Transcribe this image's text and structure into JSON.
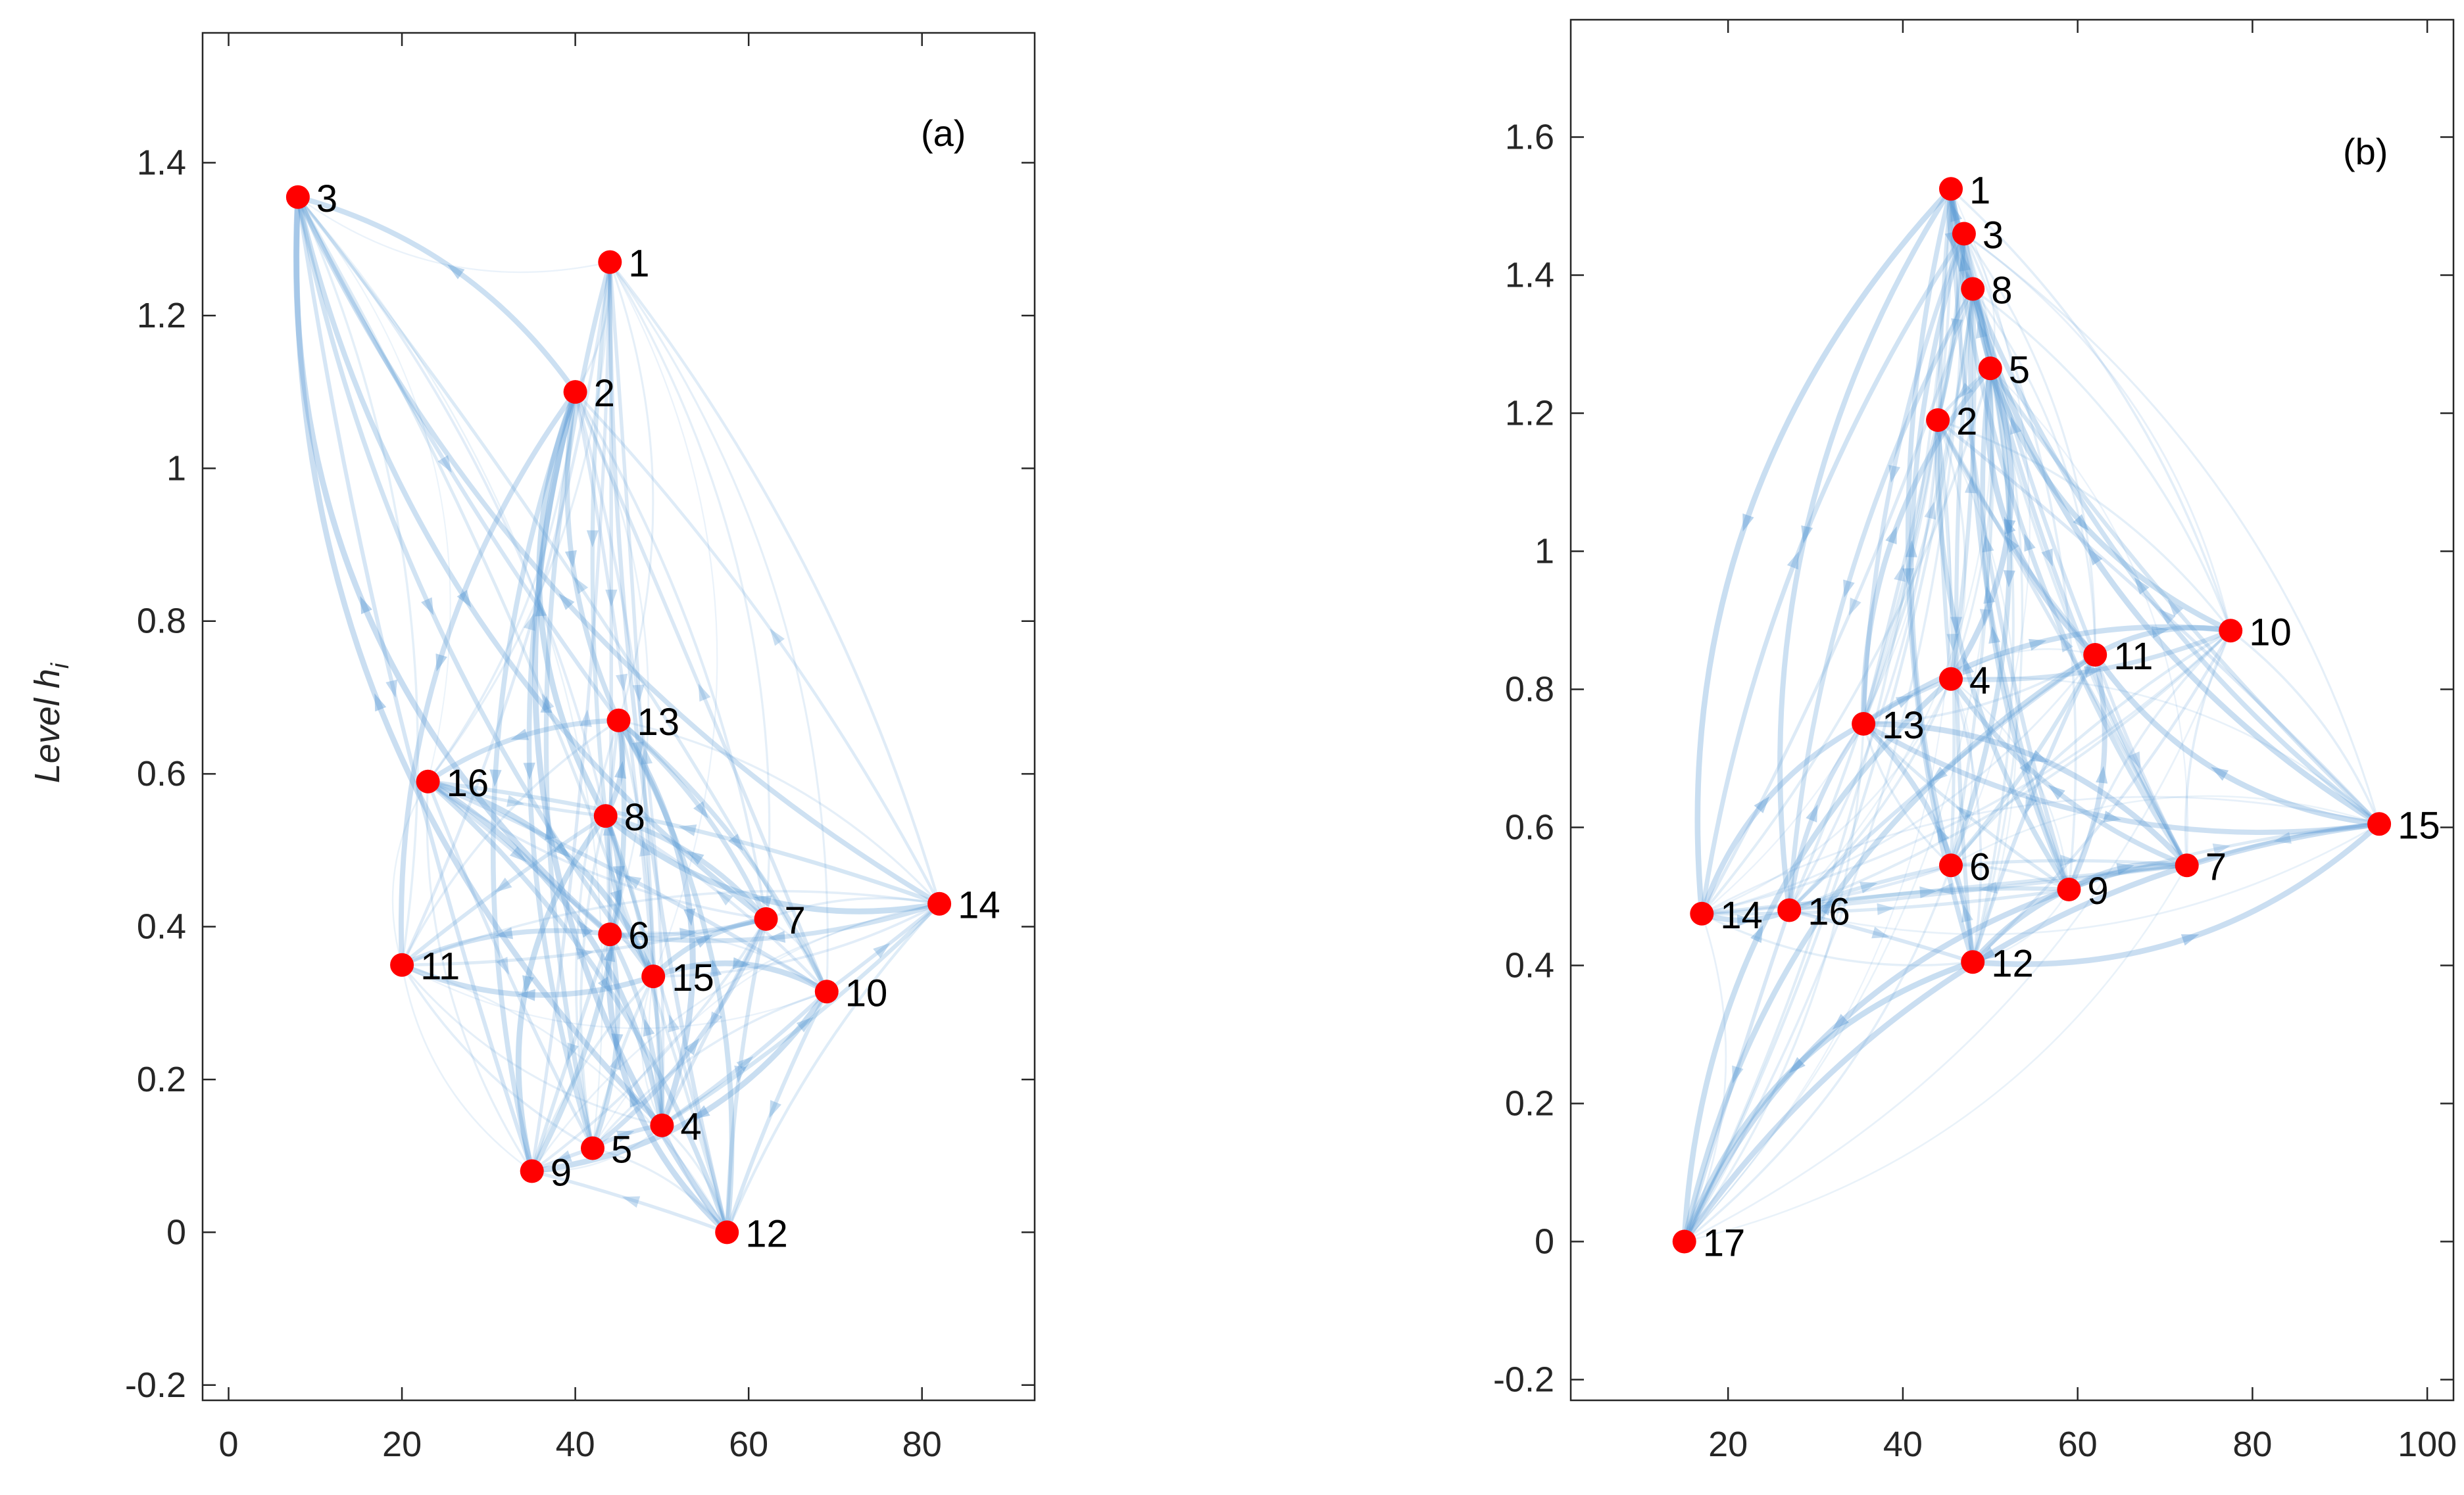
{
  "colors": {
    "node": "#ff0000",
    "edge": "#5b9bd5",
    "axis": "#262626"
  },
  "chart_data": [
    {
      "type": "network",
      "panel_label": "(a)",
      "ylabel": "Level h",
      "ylabel_subscript": "i",
      "xlim": [
        -3,
        93
      ],
      "ylim": [
        -0.22,
        1.57
      ],
      "xticks": [
        0,
        20,
        40,
        60,
        80
      ],
      "yticks": [
        -0.2,
        0,
        0.2,
        0.4,
        0.6,
        0.8,
        1,
        1.2,
        1.4
      ],
      "ytick_labels": [
        "-0.2",
        "0",
        "0.2",
        "0.4",
        "0.6",
        "0.8",
        "1",
        "1.2",
        "1.4"
      ],
      "nodes": [
        {
          "id": "1",
          "x": 44,
          "y": 1.27
        },
        {
          "id": "2",
          "x": 40,
          "y": 1.1
        },
        {
          "id": "3",
          "x": 8,
          "y": 1.355
        },
        {
          "id": "4",
          "x": 50,
          "y": 0.14
        },
        {
          "id": "5",
          "x": 42,
          "y": 0.11
        },
        {
          "id": "6",
          "x": 44,
          "y": 0.39
        },
        {
          "id": "7",
          "x": 62,
          "y": 0.41
        },
        {
          "id": "8",
          "x": 43.5,
          "y": 0.545
        },
        {
          "id": "9",
          "x": 35,
          "y": 0.08
        },
        {
          "id": "10",
          "x": 69,
          "y": 0.315
        },
        {
          "id": "11",
          "x": 20,
          "y": 0.35
        },
        {
          "id": "12",
          "x": 57.5,
          "y": 0.0
        },
        {
          "id": "13",
          "x": 45,
          "y": 0.67
        },
        {
          "id": "14",
          "x": 82,
          "y": 0.43
        },
        {
          "id": "15",
          "x": 49,
          "y": 0.335
        },
        {
          "id": "16",
          "x": 23,
          "y": 0.59
        }
      ]
    },
    {
      "type": "network",
      "panel_label": "(b)",
      "ylabel": "",
      "ylabel_subscript": "",
      "xlim": [
        2,
        103
      ],
      "ylim": [
        -0.23,
        1.77
      ],
      "xticks": [
        20,
        40,
        60,
        80,
        100
      ],
      "yticks": [
        -0.2,
        0,
        0.2,
        0.4,
        0.6,
        0.8,
        1,
        1.2,
        1.4,
        1.6
      ],
      "ytick_labels": [
        "-0.2",
        "0",
        "0.2",
        "0.4",
        "0.6",
        "0.8",
        "1",
        "1.2",
        "1.4",
        "1.6"
      ],
      "nodes": [
        {
          "id": "1",
          "x": 45.5,
          "y": 1.525
        },
        {
          "id": "2",
          "x": 44,
          "y": 1.19
        },
        {
          "id": "3",
          "x": 47,
          "y": 1.46
        },
        {
          "id": "4",
          "x": 45.5,
          "y": 0.815
        },
        {
          "id": "5",
          "x": 50,
          "y": 1.265
        },
        {
          "id": "6",
          "x": 45.5,
          "y": 0.545
        },
        {
          "id": "7",
          "x": 72.5,
          "y": 0.545
        },
        {
          "id": "8",
          "x": 48,
          "y": 1.38
        },
        {
          "id": "9",
          "x": 59,
          "y": 0.51
        },
        {
          "id": "10",
          "x": 77.5,
          "y": 0.885
        },
        {
          "id": "11",
          "x": 62,
          "y": 0.85
        },
        {
          "id": "12",
          "x": 48,
          "y": 0.405
        },
        {
          "id": "13",
          "x": 35.5,
          "y": 0.75
        },
        {
          "id": "14",
          "x": 17,
          "y": 0.475
        },
        {
          "id": "15",
          "x": 94.5,
          "y": 0.605
        },
        {
          "id": "16",
          "x": 27,
          "y": 0.48
        },
        {
          "id": "17",
          "x": 15,
          "y": 0.0
        }
      ]
    }
  ]
}
